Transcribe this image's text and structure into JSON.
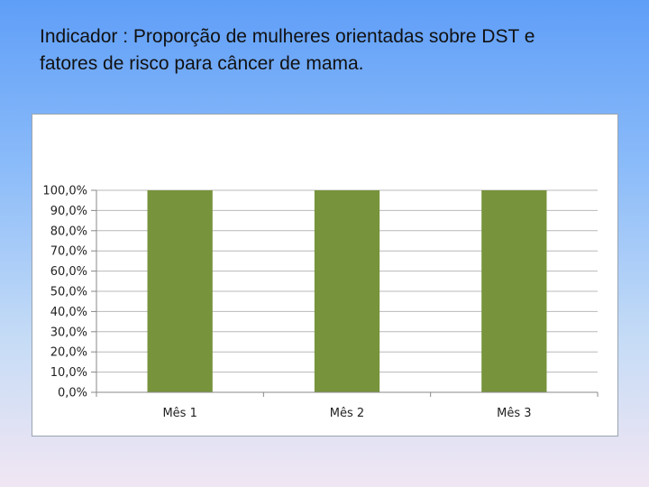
{
  "slide": {
    "title_line1": "Indicador : Proporção de mulheres orientadas sobre DST e",
    "title_line2": "fatores de risco para câncer de mama."
  },
  "chart_data": {
    "type": "bar",
    "categories": [
      "Mês 1",
      "Mês 2",
      "Mês 3"
    ],
    "series": [
      {
        "values": [
          100,
          100,
          100
        ]
      }
    ],
    "ylim": [
      0,
      100
    ],
    "yticks": [
      0,
      10,
      20,
      30,
      40,
      50,
      60,
      70,
      80,
      90,
      100
    ],
    "ytick_labels": [
      "0,0%",
      "10,0%",
      "20,0%",
      "30,0%",
      "40,0%",
      "50,0%",
      "60,0%",
      "70,0%",
      "80,0%",
      "90,0%",
      "100,0%"
    ],
    "grid": true,
    "legend": "none",
    "bar_color": "#77933c",
    "grid_color": "#b8b8b8"
  }
}
